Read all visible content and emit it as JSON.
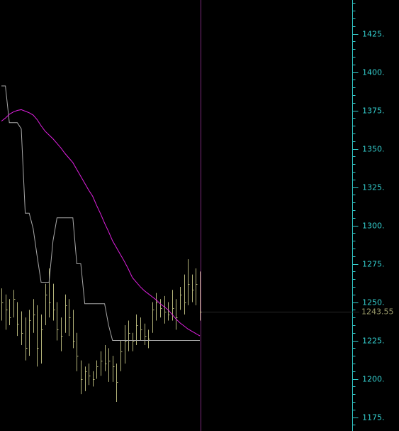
{
  "chart_data": {
    "type": "ohlc",
    "ylim": [
      1166,
      1447
    ],
    "yticks": [
      {
        "value": 1175,
        "label": "1175."
      },
      {
        "value": 1200,
        "label": "1200."
      },
      {
        "value": 1225,
        "label": "1225."
      },
      {
        "value": 1250,
        "label": "1250."
      },
      {
        "value": 1275,
        "label": "1275."
      },
      {
        "value": 1300,
        "label": "1300."
      },
      {
        "value": 1325,
        "label": "1325."
      },
      {
        "value": 1350,
        "label": "1350."
      },
      {
        "value": 1375,
        "label": "1375."
      },
      {
        "value": 1400,
        "label": "1400."
      },
      {
        "value": 1425,
        "label": "1425."
      }
    ],
    "minor_yticks": [
      1170,
      1180,
      1185,
      1190,
      1195,
      1205,
      1210,
      1215,
      1220,
      1230,
      1235,
      1240,
      1245,
      1255,
      1260,
      1265,
      1270,
      1280,
      1285,
      1290,
      1295,
      1305,
      1310,
      1315,
      1320,
      1330,
      1335,
      1340,
      1345,
      1355,
      1360,
      1365,
      1370,
      1380,
      1385,
      1390,
      1395,
      1405,
      1410,
      1415,
      1420,
      1430,
      1435,
      1440,
      1445
    ],
    "bars": {
      "color": "#b4b47a",
      "high": [
        1259,
        1255,
        1252,
        1258,
        1250,
        1244,
        1240,
        1245,
        1252,
        1248,
        1242,
        1262,
        1272,
        1262,
        1250,
        1240,
        1255,
        1252,
        1245,
        1230,
        1212,
        1208,
        1210,
        1205,
        1212,
        1218,
        1222,
        1220,
        1215,
        1210,
        1225,
        1235,
        1238,
        1230,
        1242,
        1240,
        1236,
        1232,
        1250,
        1256,
        1252,
        1254,
        1250,
        1258,
        1252,
        1260,
        1268,
        1278,
        1268,
        1272,
        1270
      ],
      "low": [
        1238,
        1232,
        1235,
        1240,
        1228,
        1222,
        1212,
        1215,
        1230,
        1208,
        1210,
        1235,
        1240,
        1238,
        1225,
        1218,
        1230,
        1228,
        1220,
        1205,
        1190,
        1192,
        1196,
        1195,
        1200,
        1202,
        1205,
        1198,
        1198,
        1185,
        1205,
        1210,
        1218,
        1218,
        1222,
        1225,
        1222,
        1220,
        1230,
        1238,
        1240,
        1236,
        1238,
        1238,
        1232,
        1245,
        1242,
        1248,
        1250,
        1248,
        1238
      ],
      "close": [
        1250,
        1245,
        1240,
        1252,
        1236,
        1230,
        1220,
        1238,
        1242,
        1220,
        1232,
        1255,
        1250,
        1245,
        1232,
        1228,
        1248,
        1240,
        1225,
        1215,
        1200,
        1205,
        1202,
        1200,
        1208,
        1212,
        1210,
        1212,
        1208,
        1198,
        1218,
        1225,
        1230,
        1225,
        1235,
        1232,
        1228,
        1226,
        1245,
        1250,
        1246,
        1244,
        1242,
        1246,
        1240,
        1255,
        1250,
        1262,
        1258,
        1262,
        1243.55
      ]
    },
    "series": [
      {
        "color": "#a8a8a8",
        "values": [
          1391,
          1391,
          1367,
          1367,
          1367,
          1363,
          1308,
          1308,
          1298,
          1280,
          1263,
          1263,
          1263,
          1290,
          1305,
          1305,
          1305,
          1305,
          1305,
          1275,
          1275,
          1249,
          1249,
          1249,
          1249,
          1249,
          1249,
          1235,
          1225,
          1225,
          1225,
          1225,
          1225,
          1225,
          1225,
          1225,
          1225,
          1225,
          1225,
          1225,
          1225,
          1225,
          1225,
          1225,
          1225,
          1225,
          1225,
          1225,
          1225,
          1225,
          1225
        ]
      },
      {
        "color": "#e020e0",
        "values": [
          1368,
          1370,
          1372.5,
          1374,
          1375,
          1375.5,
          1374.5,
          1373.5,
          1372,
          1369,
          1365,
          1361.5,
          1359,
          1356.5,
          1353.5,
          1350.5,
          1347,
          1344,
          1341,
          1336.5,
          1332,
          1327.5,
          1323,
          1319,
          1313,
          1307.5,
          1301.5,
          1296,
          1290,
          1285.5,
          1281,
          1276.5,
          1271.5,
          1266,
          1263,
          1260,
          1257.5,
          1255.5,
          1253.5,
          1251.5,
          1249,
          1247,
          1245,
          1242,
          1239,
          1236.5,
          1234.5,
          1232.5,
          1231,
          1229.5,
          1228
        ]
      }
    ],
    "last_price": 1243.55,
    "axis_color": "#33cccc"
  }
}
